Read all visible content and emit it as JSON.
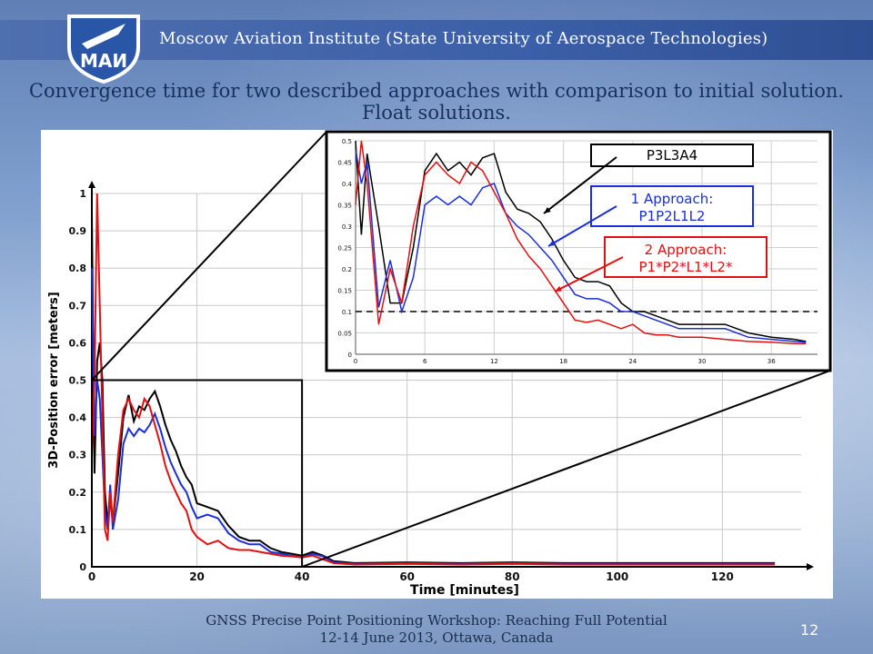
{
  "header": {
    "institute": "Moscow Aviation Institute (State University of Aerospace Technologies)",
    "logo_text": "МАИ"
  },
  "slide": {
    "title": "Convergence time for two described approaches with comparison to initial solution. Float solutions."
  },
  "footer": {
    "line1": "GNSS Precise Point Positioning Workshop: Reaching Full Potential",
    "line2": "12-14 June 2013, Ottawa, Canada",
    "page_number": "12"
  },
  "colors": {
    "series_black": "#000000",
    "series_blue": "#1a2fd6",
    "series_red": "#e01010"
  },
  "chart_data": [
    {
      "type": "line",
      "panel": "main",
      "xlabel": "Time [minutes]",
      "ylabel": "3D-Position error [meters]",
      "xlim": [
        0,
        135
      ],
      "ylim": [
        0,
        1
      ],
      "x_ticks": [
        "0",
        "20",
        "40",
        "60",
        "80",
        "100",
        "120"
      ],
      "y_ticks": [
        "0",
        "0.1",
        "0.2",
        "0.3",
        "0.4",
        "0.5",
        "0.6",
        "0.7",
        "0.8",
        "0.9",
        "1"
      ],
      "grid": true,
      "series": [
        {
          "color": "#000000",
          "x": [
            0,
            0.5,
            1,
            1.5,
            2,
            2.5,
            3,
            3.5,
            4,
            5,
            6,
            7,
            8,
            9,
            10,
            11,
            12,
            13,
            14,
            15,
            16,
            17,
            18,
            19,
            20,
            22,
            24,
            26,
            28,
            30,
            32,
            34,
            36,
            38,
            40,
            42,
            44,
            46,
            50,
            60,
            70,
            80,
            90,
            100,
            110,
            120,
            130
          ],
          "y": [
            0.95,
            0.25,
            0.55,
            0.6,
            0.5,
            0.2,
            0.12,
            0.18,
            0.12,
            0.25,
            0.4,
            0.46,
            0.39,
            0.43,
            0.42,
            0.45,
            0.47,
            0.43,
            0.38,
            0.34,
            0.31,
            0.27,
            0.24,
            0.22,
            0.17,
            0.16,
            0.15,
            0.11,
            0.08,
            0.07,
            0.07,
            0.05,
            0.04,
            0.035,
            0.03,
            0.04,
            0.03,
            0.015,
            0.01,
            0.012,
            0.01,
            0.012,
            0.01,
            0.01,
            0.01,
            0.01,
            0.01
          ]
        },
        {
          "color": "#1a2fd6",
          "x": [
            0,
            0.5,
            1,
            1.5,
            2,
            2.5,
            3,
            3.5,
            4,
            5,
            6,
            7,
            8,
            9,
            10,
            11,
            12,
            13,
            14,
            15,
            16,
            17,
            18,
            19,
            20,
            22,
            24,
            26,
            28,
            30,
            32,
            34,
            36,
            38,
            40,
            42,
            44,
            46,
            50,
            60,
            70,
            80,
            90,
            100,
            110,
            120,
            130
          ],
          "y": [
            0.8,
            0.35,
            0.5,
            0.45,
            0.3,
            0.15,
            0.1,
            0.22,
            0.1,
            0.18,
            0.33,
            0.37,
            0.35,
            0.37,
            0.36,
            0.38,
            0.41,
            0.37,
            0.32,
            0.28,
            0.25,
            0.22,
            0.2,
            0.16,
            0.13,
            0.14,
            0.13,
            0.09,
            0.07,
            0.06,
            0.06,
            0.04,
            0.035,
            0.03,
            0.025,
            0.035,
            0.028,
            0.012,
            0.008,
            0.01,
            0.008,
            0.01,
            0.008,
            0.008,
            0.008,
            0.008,
            0.008
          ]
        },
        {
          "color": "#e01010",
          "x": [
            0,
            0.5,
            1,
            1.5,
            2,
            2.5,
            3,
            3.5,
            4,
            5,
            6,
            7,
            8,
            9,
            10,
            11,
            12,
            13,
            14,
            15,
            16,
            17,
            18,
            19,
            20,
            22,
            24,
            26,
            28,
            30,
            32,
            34,
            36,
            38,
            40,
            42,
            44,
            46,
            50,
            60,
            70,
            80,
            90,
            100,
            110,
            120,
            130
          ],
          "y": [
            0.3,
            0.5,
            1.0,
            0.7,
            0.4,
            0.1,
            0.07,
            0.2,
            0.12,
            0.3,
            0.42,
            0.45,
            0.42,
            0.4,
            0.45,
            0.43,
            0.38,
            0.33,
            0.27,
            0.23,
            0.2,
            0.17,
            0.15,
            0.1,
            0.08,
            0.06,
            0.07,
            0.05,
            0.045,
            0.045,
            0.04,
            0.035,
            0.03,
            0.028,
            0.025,
            0.03,
            0.02,
            0.01,
            0.006,
            0.008,
            0.006,
            0.008,
            0.006,
            0.006,
            0.006,
            0.006,
            0.006
          ]
        }
      ]
    },
    {
      "type": "line",
      "panel": "zoom-inset",
      "xlim": [
        0,
        40
      ],
      "ylim": [
        0,
        0.5
      ],
      "x_ticks": [
        "0",
        "6",
        "12",
        "18",
        "24",
        "30",
        "36"
      ],
      "y_ticks": [
        "0",
        "0.05",
        "0.1",
        "0.15",
        "0.2",
        "0.25",
        "0.3",
        "0.35",
        "0.4",
        "0.45",
        "0.5"
      ],
      "grid": true,
      "threshold_line": 0.1,
      "annotations": [
        {
          "text": "P3L3A4",
          "color": "#000000"
        },
        {
          "text": "1 Approach:\nP1P2L1L2",
          "color": "#1a2fd6"
        },
        {
          "text": "2 Approach:\nP1*P2*L1*L2*",
          "color": "#e01010"
        }
      ],
      "series": [
        {
          "color": "#000000",
          "x": [
            0,
            0.5,
            1,
            2,
            3,
            4,
            5,
            6,
            7,
            8,
            9,
            10,
            11,
            12,
            13,
            14,
            15,
            16,
            17,
            18,
            19,
            20,
            21,
            22,
            23,
            24,
            25,
            26,
            27,
            28,
            30,
            32,
            34,
            36,
            38,
            39
          ],
          "y": [
            0.5,
            0.28,
            0.47,
            0.3,
            0.12,
            0.12,
            0.25,
            0.43,
            0.47,
            0.43,
            0.45,
            0.42,
            0.46,
            0.47,
            0.38,
            0.34,
            0.33,
            0.31,
            0.27,
            0.22,
            0.18,
            0.17,
            0.17,
            0.16,
            0.12,
            0.1,
            0.1,
            0.09,
            0.08,
            0.07,
            0.07,
            0.07,
            0.05,
            0.04,
            0.035,
            0.03
          ]
        },
        {
          "color": "#1a2fd6",
          "x": [
            0,
            0.5,
            1,
            2,
            3,
            4,
            5,
            6,
            7,
            8,
            9,
            10,
            11,
            12,
            13,
            14,
            15,
            16,
            17,
            18,
            19,
            20,
            21,
            22,
            23,
            24,
            25,
            26,
            27,
            28,
            30,
            32,
            34,
            36,
            38,
            39
          ],
          "y": [
            0.48,
            0.4,
            0.45,
            0.11,
            0.22,
            0.1,
            0.18,
            0.35,
            0.37,
            0.35,
            0.37,
            0.35,
            0.39,
            0.4,
            0.33,
            0.3,
            0.28,
            0.25,
            0.22,
            0.18,
            0.14,
            0.13,
            0.13,
            0.12,
            0.1,
            0.1,
            0.09,
            0.08,
            0.07,
            0.06,
            0.06,
            0.06,
            0.04,
            0.035,
            0.03,
            0.028
          ]
        },
        {
          "color": "#e01010",
          "x": [
            0,
            0.5,
            1,
            2,
            3,
            4,
            5,
            6,
            7,
            8,
            9,
            10,
            11,
            12,
            13,
            14,
            15,
            16,
            17,
            18,
            19,
            20,
            21,
            22,
            23,
            24,
            25,
            26,
            27,
            28,
            30,
            32,
            34,
            36,
            38,
            39
          ],
          "y": [
            0.35,
            0.5,
            0.4,
            0.07,
            0.2,
            0.12,
            0.3,
            0.42,
            0.45,
            0.42,
            0.4,
            0.45,
            0.43,
            0.38,
            0.33,
            0.27,
            0.23,
            0.2,
            0.16,
            0.12,
            0.08,
            0.075,
            0.08,
            0.07,
            0.06,
            0.07,
            0.05,
            0.045,
            0.045,
            0.04,
            0.04,
            0.035,
            0.03,
            0.028,
            0.025,
            0.025
          ]
        }
      ]
    }
  ]
}
